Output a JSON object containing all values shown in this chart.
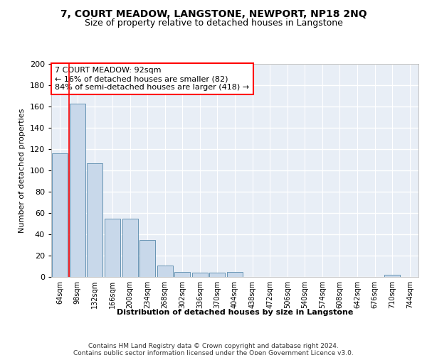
{
  "title": "7, COURT MEADOW, LANGSTONE, NEWPORT, NP18 2NQ",
  "subtitle": "Size of property relative to detached houses in Langstone",
  "xlabel": "Distribution of detached houses by size in Langstone",
  "ylabel": "Number of detached properties",
  "bar_color": "#c8d8ea",
  "bar_edge_color": "#5588aa",
  "background_color": "#e8eef6",
  "grid_color": "#ffffff",
  "categories": [
    "64sqm",
    "98sqm",
    "132sqm",
    "166sqm",
    "200sqm",
    "234sqm",
    "268sqm",
    "302sqm",
    "336sqm",
    "370sqm",
    "404sqm",
    "438sqm",
    "472sqm",
    "506sqm",
    "540sqm",
    "574sqm",
    "608sqm",
    "642sqm",
    "676sqm",
    "710sqm",
    "744sqm"
  ],
  "values": [
    116,
    163,
    107,
    55,
    55,
    35,
    11,
    5,
    4,
    4,
    5,
    0,
    0,
    0,
    0,
    0,
    0,
    0,
    0,
    2,
    0
  ],
  "ylim": [
    0,
    200
  ],
  "yticks": [
    0,
    20,
    40,
    60,
    80,
    100,
    120,
    140,
    160,
    180,
    200
  ],
  "annotation_line1": "7 COURT MEADOW: 92sqm",
  "annotation_line2": "← 16% of detached houses are smaller (82)",
  "annotation_line3": "84% of semi-detached houses are larger (418) →",
  "footer_text": "Contains HM Land Registry data © Crown copyright and database right 2024.\nContains public sector information licensed under the Open Government Licence v3.0.",
  "title_fontsize": 10,
  "subtitle_fontsize": 9,
  "annotation_fontsize": 8,
  "footer_fontsize": 6.5,
  "ylabel_fontsize": 8,
  "xlabel_fontsize": 8
}
